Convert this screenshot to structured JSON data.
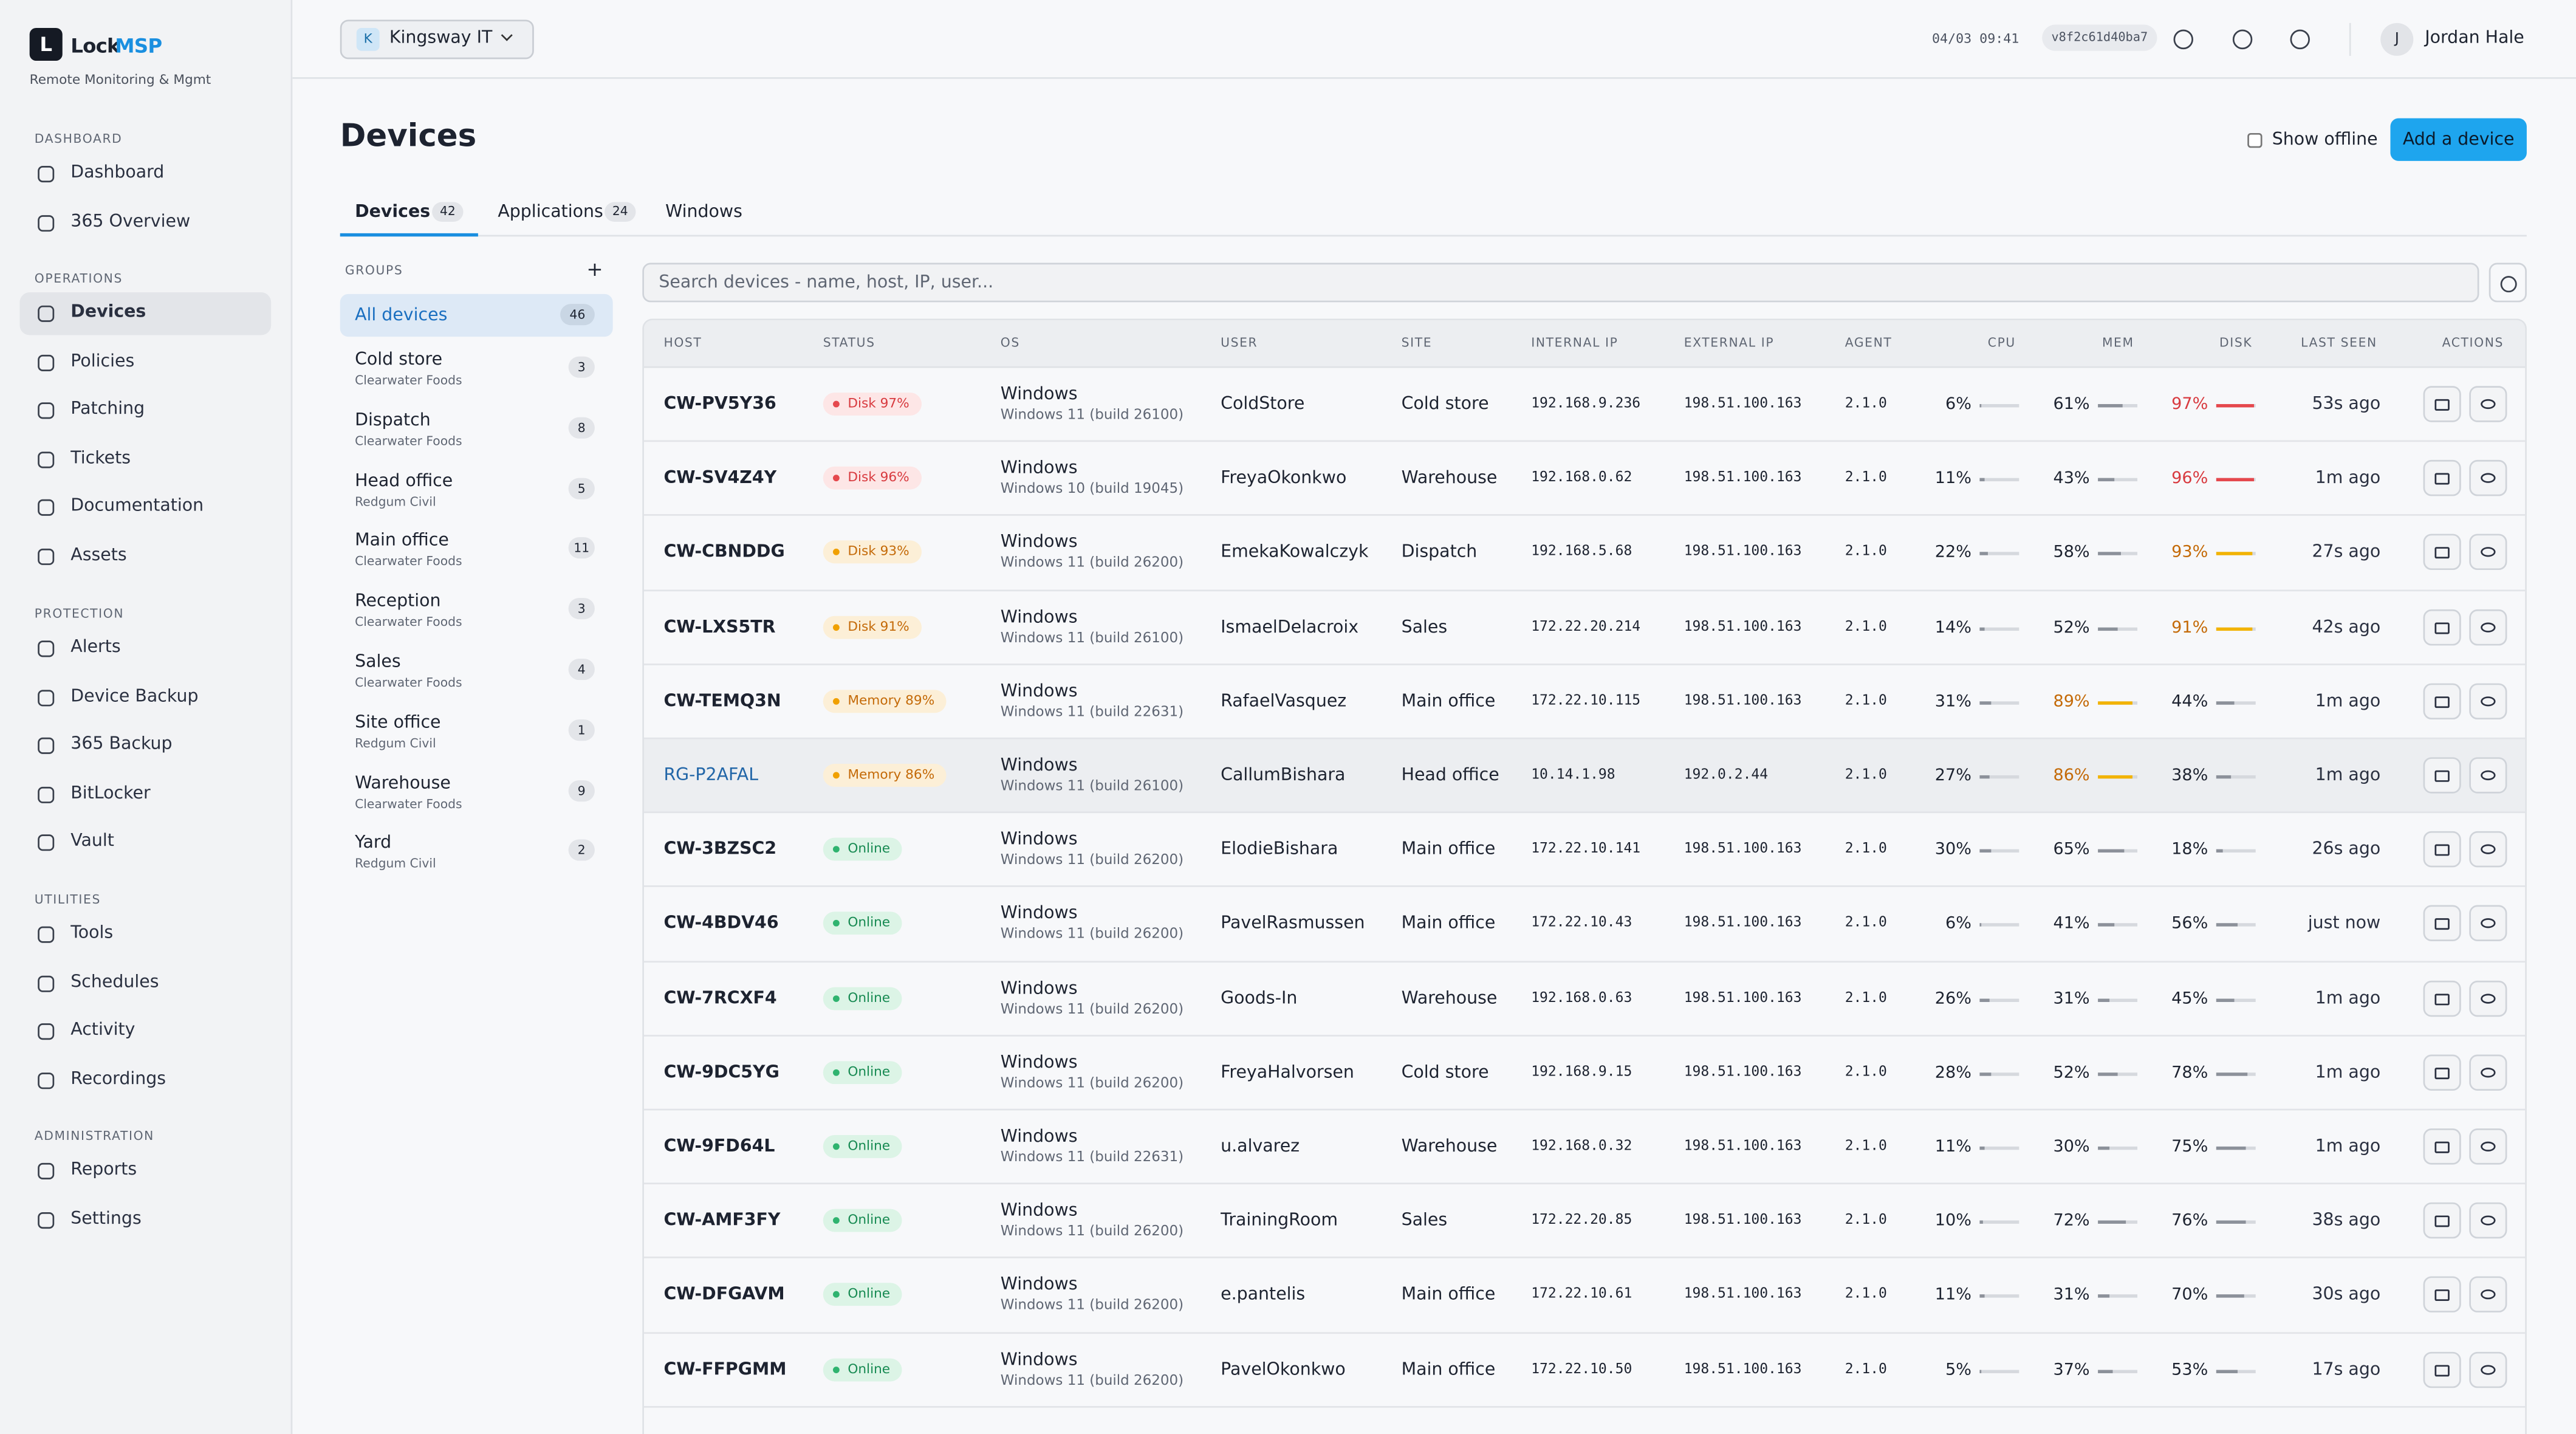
{
  "brand": {
    "a": "Lock",
    "b": "MSP",
    "logo": "L",
    "subtitle": "Remote Monitoring & Mgmt"
  },
  "sidebar": {
    "active": [
      1,
      0
    ],
    "sections": [
      {
        "title": "DASHBOARD",
        "items": [
          "Dashboard",
          "365 Overview"
        ]
      },
      {
        "title": "OPERATIONS",
        "items": [
          "Devices",
          "Policies",
          "Patching",
          "Tickets",
          "Documentation",
          "Assets"
        ]
      },
      {
        "title": "PROTECTION",
        "items": [
          "Alerts",
          "Device Backup",
          "365 Backup",
          "BitLocker",
          "Vault"
        ]
      },
      {
        "title": "UTILITIES",
        "items": [
          "Tools",
          "Schedules",
          "Activity",
          "Recordings"
        ]
      },
      {
        "title": "ADMINISTRATION",
        "items": [
          "Reports",
          "Settings"
        ]
      }
    ]
  },
  "topbar": {
    "tenant_initial": "K",
    "tenant": "Kingsway IT",
    "time": "04/03 09:41",
    "build": "v8f2c61d40ba7",
    "user_initial": "J",
    "user": "Jordan Hale"
  },
  "page": {
    "title": "Devices",
    "show_offline": "Show offline",
    "add": "Add a device",
    "search": "Search devices - name, host, IP, user..."
  },
  "tabs": {
    "active": 0,
    "items": [
      {
        "label": "Devices",
        "count": "42"
      },
      {
        "label": "Applications",
        "count": "24"
      },
      {
        "label": "Windows"
      }
    ]
  },
  "groups": {
    "title": "GROUPS",
    "add": "+",
    "all": {
      "label": "All devices",
      "count": "46"
    },
    "items": [
      {
        "name": "Cold store",
        "org": "Clearwater Foods",
        "count": "3"
      },
      {
        "name": "Dispatch",
        "org": "Clearwater Foods",
        "count": "8"
      },
      {
        "name": "Head office",
        "org": "Redgum Civil",
        "count": "5"
      },
      {
        "name": "Main office",
        "org": "Clearwater Foods",
        "count": "11"
      },
      {
        "name": "Reception",
        "org": "Clearwater Foods",
        "count": "3"
      },
      {
        "name": "Sales",
        "org": "Clearwater Foods",
        "count": "4"
      },
      {
        "name": "Site office",
        "org": "Redgum Civil",
        "count": "1"
      },
      {
        "name": "Warehouse",
        "org": "Clearwater Foods",
        "count": "9"
      },
      {
        "name": "Yard",
        "org": "Redgum Civil",
        "count": "2"
      }
    ]
  },
  "table": {
    "bar_range": [
      0,
      100
    ],
    "headers": [
      "HOST",
      "STATUS",
      "OS",
      "USER",
      "SITE",
      "INTERNAL IP",
      "EXTERNAL IP",
      "AGENT",
      "CPU",
      "MEM",
      "DISK",
      "LAST SEEN",
      "ACTIONS"
    ],
    "rows": [
      {
        "host": "CW-PV5Y36",
        "status": {
          "label": "Disk 97%",
          "tone": "red"
        },
        "os": "Windows",
        "build": "Windows 11 (build 26100)",
        "user": "ColdStore",
        "site": "Cold store",
        "int_ip": "192.168.9.236",
        "ext_ip": "198.51.100.163",
        "agent": "2.1.0",
        "cpu": {
          "value": 6,
          "label": "6%"
        },
        "mem": {
          "value": 61,
          "label": "61%"
        },
        "disk": {
          "value": 97,
          "label": "97%",
          "tone": "red"
        },
        "seen": "53s ago"
      },
      {
        "host": "CW-SV4Z4Y",
        "status": {
          "label": "Disk 96%",
          "tone": "red"
        },
        "os": "Windows",
        "build": "Windows 10 (build 19045)",
        "user": "FreyaOkonkwo",
        "site": "Warehouse",
        "int_ip": "192.168.0.62",
        "ext_ip": "198.51.100.163",
        "agent": "2.1.0",
        "cpu": {
          "value": 11,
          "label": "11%"
        },
        "mem": {
          "value": 43,
          "label": "43%"
        },
        "disk": {
          "value": 96,
          "label": "96%",
          "tone": "red"
        },
        "seen": "1m ago"
      },
      {
        "host": "CW-CBNDDG",
        "status": {
          "label": "Disk 93%",
          "tone": "amber"
        },
        "os": "Windows",
        "build": "Windows 11 (build 26200)",
        "user": "EmekaKowalczyk",
        "site": "Dispatch",
        "int_ip": "192.168.5.68",
        "ext_ip": "198.51.100.163",
        "agent": "2.1.0",
        "cpu": {
          "value": 22,
          "label": "22%"
        },
        "mem": {
          "value": 58,
          "label": "58%"
        },
        "disk": {
          "value": 93,
          "label": "93%",
          "tone": "amber"
        },
        "seen": "27s ago"
      },
      {
        "host": "CW-LXS5TR",
        "status": {
          "label": "Disk 91%",
          "tone": "amber"
        },
        "os": "Windows",
        "build": "Windows 11 (build 26100)",
        "user": "IsmaelDelacroix",
        "site": "Sales",
        "int_ip": "172.22.20.214",
        "ext_ip": "198.51.100.163",
        "agent": "2.1.0",
        "cpu": {
          "value": 14,
          "label": "14%"
        },
        "mem": {
          "value": 52,
          "label": "52%"
        },
        "disk": {
          "value": 91,
          "label": "91%",
          "tone": "amber"
        },
        "seen": "42s ago"
      },
      {
        "host": "CW-TEMQ3N",
        "status": {
          "label": "Memory 89%",
          "tone": "amber"
        },
        "os": "Windows",
        "build": "Windows 11 (build 22631)",
        "user": "RafaelVasquez",
        "site": "Main office",
        "int_ip": "172.22.10.115",
        "ext_ip": "198.51.100.163",
        "agent": "2.1.0",
        "cpu": {
          "value": 31,
          "label": "31%"
        },
        "mem": {
          "value": 89,
          "label": "89%",
          "tone": "amber"
        },
        "disk": {
          "value": 44,
          "label": "44%"
        },
        "seen": "1m ago"
      },
      {
        "host": "RG-P2AFAL",
        "highlight": true,
        "status": {
          "label": "Memory 86%",
          "tone": "amber"
        },
        "os": "Windows",
        "build": "Windows 11 (build 26100)",
        "user": "CallumBishara",
        "site": "Head office",
        "int_ip": "10.14.1.98",
        "ext_ip": "192.0.2.44",
        "agent": "2.1.0",
        "cpu": {
          "value": 27,
          "label": "27%"
        },
        "mem": {
          "value": 86,
          "label": "86%",
          "tone": "amber"
        },
        "disk": {
          "value": 38,
          "label": "38%"
        },
        "seen": "1m ago"
      },
      {
        "host": "CW-3BZSC2",
        "status": {
          "label": "Online",
          "tone": "green"
        },
        "os": "Windows",
        "build": "Windows 11 (build 26200)",
        "user": "ElodieBishara",
        "site": "Main office",
        "int_ip": "172.22.10.141",
        "ext_ip": "198.51.100.163",
        "agent": "2.1.0",
        "cpu": {
          "value": 30,
          "label": "30%"
        },
        "mem": {
          "value": 65,
          "label": "65%"
        },
        "disk": {
          "value": 18,
          "label": "18%"
        },
        "seen": "26s ago"
      },
      {
        "host": "CW-4BDV46",
        "status": {
          "label": "Online",
          "tone": "green"
        },
        "os": "Windows",
        "build": "Windows 11 (build 26200)",
        "user": "PavelRasmussen",
        "site": "Main office",
        "int_ip": "172.22.10.43",
        "ext_ip": "198.51.100.163",
        "agent": "2.1.0",
        "cpu": {
          "value": 6,
          "label": "6%"
        },
        "mem": {
          "value": 41,
          "label": "41%"
        },
        "disk": {
          "value": 56,
          "label": "56%"
        },
        "seen": "just now"
      },
      {
        "host": "CW-7RCXF4",
        "status": {
          "label": "Online",
          "tone": "green"
        },
        "os": "Windows",
        "build": "Windows 11 (build 26200)",
        "user": "Goods-In",
        "site": "Warehouse",
        "int_ip": "192.168.0.63",
        "ext_ip": "198.51.100.163",
        "agent": "2.1.0",
        "cpu": {
          "value": 26,
          "label": "26%"
        },
        "mem": {
          "value": 31,
          "label": "31%"
        },
        "disk": {
          "value": 45,
          "label": "45%"
        },
        "seen": "1m ago"
      },
      {
        "host": "CW-9DC5YG",
        "status": {
          "label": "Online",
          "tone": "green"
        },
        "os": "Windows",
        "build": "Windows 11 (build 26200)",
        "user": "FreyaHalvorsen",
        "site": "Cold store",
        "int_ip": "192.168.9.15",
        "ext_ip": "198.51.100.163",
        "agent": "2.1.0",
        "cpu": {
          "value": 28,
          "label": "28%"
        },
        "mem": {
          "value": 52,
          "label": "52%"
        },
        "disk": {
          "value": 78,
          "label": "78%"
        },
        "seen": "1m ago"
      },
      {
        "host": "CW-9FD64L",
        "status": {
          "label": "Online",
          "tone": "green"
        },
        "os": "Windows",
        "build": "Windows 11 (build 22631)",
        "user": "u.alvarez",
        "site": "Warehouse",
        "int_ip": "192.168.0.32",
        "ext_ip": "198.51.100.163",
        "agent": "2.1.0",
        "cpu": {
          "value": 11,
          "label": "11%"
        },
        "mem": {
          "value": 30,
          "label": "30%"
        },
        "disk": {
          "value": 75,
          "label": "75%"
        },
        "seen": "1m ago"
      },
      {
        "host": "CW-AMF3FY",
        "status": {
          "label": "Online",
          "tone": "green"
        },
        "os": "Windows",
        "build": "Windows 11 (build 26200)",
        "user": "TrainingRoom",
        "site": "Sales",
        "int_ip": "172.22.20.85",
        "ext_ip": "198.51.100.163",
        "agent": "2.1.0",
        "cpu": {
          "value": 10,
          "label": "10%"
        },
        "mem": {
          "value": 72,
          "label": "72%"
        },
        "disk": {
          "value": 76,
          "label": "76%"
        },
        "seen": "38s ago"
      },
      {
        "host": "CW-DFGAVM",
        "status": {
          "label": "Online",
          "tone": "green"
        },
        "os": "Windows",
        "build": "Windows 11 (build 26200)",
        "user": "e.pantelis",
        "site": "Main office",
        "int_ip": "172.22.10.61",
        "ext_ip": "198.51.100.163",
        "agent": "2.1.0",
        "cpu": {
          "value": 11,
          "label": "11%"
        },
        "mem": {
          "value": 31,
          "label": "31%"
        },
        "disk": {
          "value": 70,
          "label": "70%"
        },
        "seen": "30s ago"
      },
      {
        "host": "CW-FFPGMM",
        "status": {
          "label": "Online",
          "tone": "green"
        },
        "os": "Windows",
        "build": "Windows 11 (build 26200)",
        "user": "PavelOkonkwo",
        "site": "Main office",
        "int_ip": "172.22.10.50",
        "ext_ip": "198.51.100.163",
        "agent": "2.1.0",
        "cpu": {
          "value": 5,
          "label": "5%"
        },
        "mem": {
          "value": 37,
          "label": "37%"
        },
        "disk": {
          "value": 53,
          "label": "53%"
        },
        "seen": "17s ago"
      }
    ]
  }
}
